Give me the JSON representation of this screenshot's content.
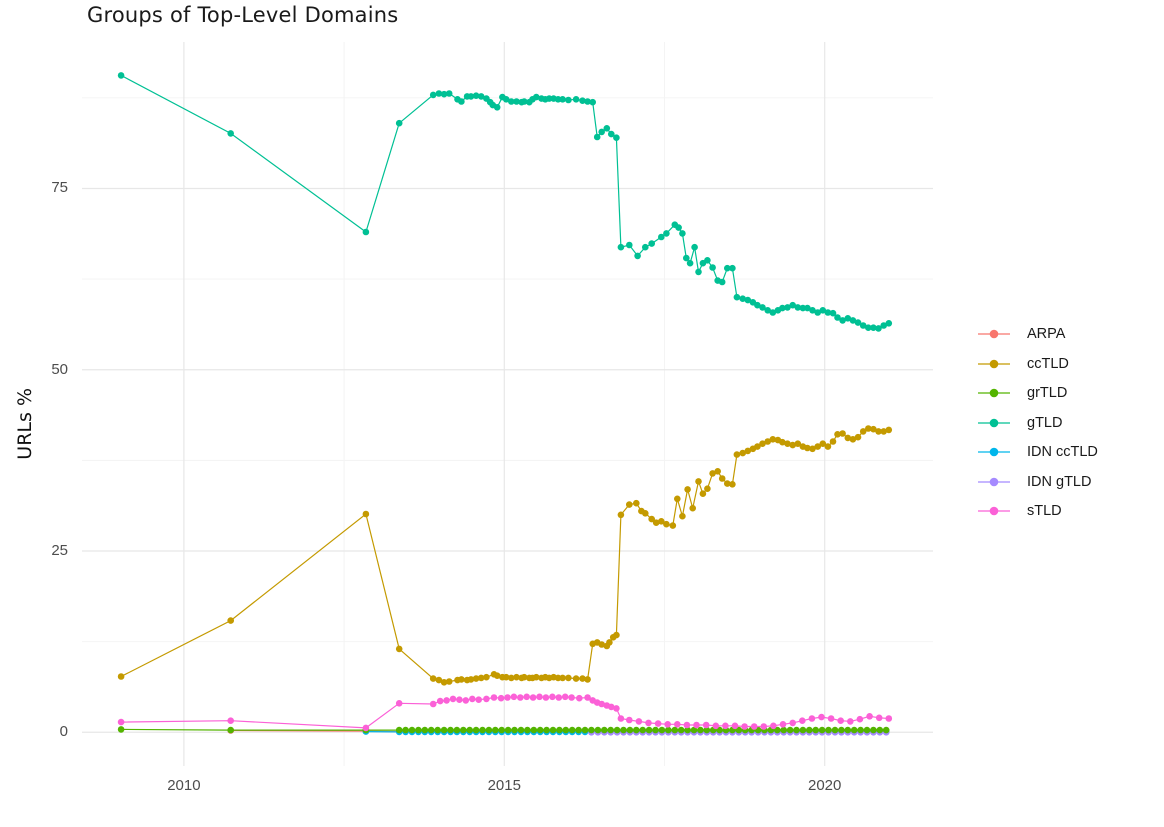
{
  "chart_data": {
    "type": "line",
    "title": "Groups of Top-Level Domains",
    "xlabel": "",
    "ylabel": "URLs %",
    "xlim": [
      2008.41,
      2021.69
    ],
    "ylim": [
      -4.65,
      95.2
    ],
    "x_ticks": [
      {
        "value": 2010,
        "label": "2010"
      },
      {
        "value": 2015,
        "label": "2015"
      },
      {
        "value": 2020,
        "label": "2020"
      }
    ],
    "x_minor": [
      2012.5,
      2017.5
    ],
    "y_ticks": [
      {
        "value": 0,
        "label": "0"
      },
      {
        "value": 25,
        "label": "25"
      },
      {
        "value": 50,
        "label": "50"
      },
      {
        "value": 75,
        "label": "75"
      }
    ],
    "y_minor": [
      12.5,
      37.5,
      62.5,
      87.5
    ],
    "grid": {
      "major_color": "#E7E7E7",
      "minor_color": "#F3F3F3",
      "background": "#FFFFFF"
    },
    "legend": {
      "position": "right",
      "items": [
        "ARPA",
        "ccTLD",
        "grTLD",
        "gTLD",
        "IDN ccTLD",
        "IDN gTLD",
        "sTLD"
      ]
    },
    "series": [
      {
        "name": "ARPA",
        "color": "#F8766D",
        "points": [
          [
            2010.73,
            0.25
          ],
          [
            2012.84,
            0.15
          ]
        ],
        "flat": {
          "from": 2013.36,
          "to": 2021.0,
          "step": 0.1,
          "value": 0.1
        }
      },
      {
        "name": "ccTLD",
        "color": "#C49A00",
        "points": [
          [
            2009.02,
            7.7
          ],
          [
            2010.73,
            15.4
          ],
          [
            2012.84,
            30.1
          ],
          [
            2013.36,
            11.5
          ],
          [
            2013.89,
            7.4
          ],
          [
            2013.98,
            7.2
          ],
          [
            2014.06,
            6.9
          ],
          [
            2014.14,
            7.0
          ],
          [
            2014.27,
            7.2
          ],
          [
            2014.33,
            7.3
          ],
          [
            2014.42,
            7.2
          ],
          [
            2014.48,
            7.3
          ],
          [
            2014.56,
            7.4
          ],
          [
            2014.64,
            7.5
          ],
          [
            2014.72,
            7.6
          ],
          [
            2014.84,
            8.0
          ],
          [
            2014.89,
            7.8
          ],
          [
            2014.97,
            7.6
          ],
          [
            2015.03,
            7.6
          ],
          [
            2015.11,
            7.5
          ],
          [
            2015.19,
            7.6
          ],
          [
            2015.27,
            7.5
          ],
          [
            2015.31,
            7.6
          ],
          [
            2015.39,
            7.5
          ],
          [
            2015.44,
            7.5
          ],
          [
            2015.5,
            7.6
          ],
          [
            2015.58,
            7.5
          ],
          [
            2015.64,
            7.6
          ],
          [
            2015.7,
            7.5
          ],
          [
            2015.77,
            7.6
          ],
          [
            2015.84,
            7.5
          ],
          [
            2015.91,
            7.5
          ],
          [
            2016.0,
            7.5
          ],
          [
            2016.12,
            7.4
          ],
          [
            2016.22,
            7.4
          ],
          [
            2016.3,
            7.3
          ],
          [
            2016.38,
            12.2
          ],
          [
            2016.45,
            12.4
          ],
          [
            2016.52,
            12.1
          ],
          [
            2016.6,
            11.9
          ],
          [
            2016.64,
            12.4
          ],
          [
            2016.7,
            13.1
          ],
          [
            2016.75,
            13.4
          ],
          [
            2016.82,
            30.0
          ],
          [
            2016.95,
            31.4
          ],
          [
            2017.06,
            31.6
          ],
          [
            2017.14,
            30.5
          ],
          [
            2017.2,
            30.2
          ],
          [
            2017.3,
            29.4
          ],
          [
            2017.37,
            28.9
          ],
          [
            2017.45,
            29.1
          ],
          [
            2017.53,
            28.7
          ],
          [
            2017.63,
            28.5
          ],
          [
            2017.7,
            32.2
          ],
          [
            2017.78,
            29.8
          ],
          [
            2017.86,
            33.5
          ],
          [
            2017.94,
            30.9
          ],
          [
            2018.03,
            34.6
          ],
          [
            2018.1,
            32.9
          ],
          [
            2018.17,
            33.6
          ],
          [
            2018.25,
            35.7
          ],
          [
            2018.33,
            36.0
          ],
          [
            2018.4,
            35.0
          ],
          [
            2018.48,
            34.3
          ],
          [
            2018.56,
            34.2
          ],
          [
            2018.63,
            38.3
          ],
          [
            2018.72,
            38.5
          ],
          [
            2018.8,
            38.8
          ],
          [
            2018.88,
            39.1
          ],
          [
            2018.95,
            39.4
          ],
          [
            2019.03,
            39.8
          ],
          [
            2019.11,
            40.1
          ],
          [
            2019.19,
            40.4
          ],
          [
            2019.27,
            40.3
          ],
          [
            2019.34,
            40.0
          ],
          [
            2019.42,
            39.8
          ],
          [
            2019.5,
            39.6
          ],
          [
            2019.58,
            39.8
          ],
          [
            2019.66,
            39.4
          ],
          [
            2019.73,
            39.2
          ],
          [
            2019.81,
            39.1
          ],
          [
            2019.89,
            39.4
          ],
          [
            2019.97,
            39.8
          ],
          [
            2020.05,
            39.4
          ],
          [
            2020.13,
            40.1
          ],
          [
            2020.2,
            41.1
          ],
          [
            2020.28,
            41.2
          ],
          [
            2020.36,
            40.6
          ],
          [
            2020.44,
            40.4
          ],
          [
            2020.52,
            40.7
          ],
          [
            2020.6,
            41.5
          ],
          [
            2020.68,
            41.9
          ],
          [
            2020.76,
            41.8
          ],
          [
            2020.84,
            41.5
          ],
          [
            2020.92,
            41.5
          ],
          [
            2021.0,
            41.7
          ]
        ]
      },
      {
        "name": "grTLD",
        "color": "#53B400",
        "points": [
          [
            2009.02,
            0.4
          ],
          [
            2010.73,
            0.3
          ],
          [
            2012.84,
            0.3
          ]
        ],
        "flat": {
          "from": 2013.36,
          "to": 2021.0,
          "step": 0.1,
          "value": 0.3
        }
      },
      {
        "name": "gTLD",
        "color": "#00C094",
        "points": [
          [
            2009.02,
            90.6
          ],
          [
            2010.73,
            82.6
          ],
          [
            2012.84,
            69.0
          ],
          [
            2013.36,
            84.0
          ],
          [
            2013.89,
            87.9
          ],
          [
            2013.98,
            88.1
          ],
          [
            2014.06,
            88.0
          ],
          [
            2014.14,
            88.1
          ],
          [
            2014.27,
            87.3
          ],
          [
            2014.33,
            87.0
          ],
          [
            2014.42,
            87.7
          ],
          [
            2014.48,
            87.7
          ],
          [
            2014.56,
            87.8
          ],
          [
            2014.64,
            87.7
          ],
          [
            2014.72,
            87.4
          ],
          [
            2014.78,
            86.9
          ],
          [
            2014.82,
            86.5
          ],
          [
            2014.89,
            86.2
          ],
          [
            2014.97,
            87.6
          ],
          [
            2015.03,
            87.3
          ],
          [
            2015.11,
            87.0
          ],
          [
            2015.19,
            87.0
          ],
          [
            2015.27,
            86.9
          ],
          [
            2015.31,
            87.0
          ],
          [
            2015.39,
            86.9
          ],
          [
            2015.44,
            87.3
          ],
          [
            2015.5,
            87.6
          ],
          [
            2015.58,
            87.4
          ],
          [
            2015.64,
            87.3
          ],
          [
            2015.7,
            87.4
          ],
          [
            2015.77,
            87.4
          ],
          [
            2015.84,
            87.3
          ],
          [
            2015.91,
            87.3
          ],
          [
            2016.0,
            87.2
          ],
          [
            2016.12,
            87.3
          ],
          [
            2016.22,
            87.1
          ],
          [
            2016.3,
            87.0
          ],
          [
            2016.38,
            86.9
          ],
          [
            2016.45,
            82.1
          ],
          [
            2016.52,
            82.8
          ],
          [
            2016.6,
            83.3
          ],
          [
            2016.67,
            82.5
          ],
          [
            2016.75,
            82.0
          ],
          [
            2016.82,
            66.9
          ],
          [
            2016.95,
            67.2
          ],
          [
            2017.08,
            65.7
          ],
          [
            2017.2,
            66.9
          ],
          [
            2017.3,
            67.4
          ],
          [
            2017.45,
            68.3
          ],
          [
            2017.53,
            68.8
          ],
          [
            2017.66,
            70.0
          ],
          [
            2017.72,
            69.6
          ],
          [
            2017.78,
            68.8
          ],
          [
            2017.84,
            65.4
          ],
          [
            2017.9,
            64.7
          ],
          [
            2017.97,
            66.9
          ],
          [
            2018.03,
            63.5
          ],
          [
            2018.1,
            64.7
          ],
          [
            2018.17,
            65.1
          ],
          [
            2018.25,
            64.1
          ],
          [
            2018.33,
            62.3
          ],
          [
            2018.4,
            62.1
          ],
          [
            2018.48,
            64.0
          ],
          [
            2018.56,
            64.0
          ],
          [
            2018.63,
            60.0
          ],
          [
            2018.72,
            59.8
          ],
          [
            2018.8,
            59.6
          ],
          [
            2018.88,
            59.3
          ],
          [
            2018.95,
            58.9
          ],
          [
            2019.03,
            58.6
          ],
          [
            2019.11,
            58.2
          ],
          [
            2019.19,
            57.9
          ],
          [
            2019.27,
            58.2
          ],
          [
            2019.34,
            58.5
          ],
          [
            2019.42,
            58.6
          ],
          [
            2019.5,
            58.9
          ],
          [
            2019.58,
            58.6
          ],
          [
            2019.66,
            58.5
          ],
          [
            2019.73,
            58.5
          ],
          [
            2019.81,
            58.2
          ],
          [
            2019.89,
            57.9
          ],
          [
            2019.97,
            58.2
          ],
          [
            2020.05,
            57.9
          ],
          [
            2020.13,
            57.8
          ],
          [
            2020.2,
            57.2
          ],
          [
            2020.28,
            56.8
          ],
          [
            2020.36,
            57.1
          ],
          [
            2020.44,
            56.8
          ],
          [
            2020.52,
            56.5
          ],
          [
            2020.6,
            56.1
          ],
          [
            2020.68,
            55.8
          ],
          [
            2020.76,
            55.8
          ],
          [
            2020.84,
            55.7
          ],
          [
            2020.92,
            56.1
          ],
          [
            2021.0,
            56.4
          ]
        ]
      },
      {
        "name": "IDN ccTLD",
        "color": "#00B6EB",
        "points": [
          [
            2012.84,
            0.1
          ]
        ],
        "flat": {
          "from": 2013.36,
          "to": 2021.0,
          "step": 0.1,
          "value": 0.05
        }
      },
      {
        "name": "IDN gTLD",
        "color": "#A58AFF",
        "points": [],
        "flat": {
          "from": 2016.36,
          "to": 2021.0,
          "step": 0.1,
          "value": 0.0
        }
      },
      {
        "name": "sTLD",
        "color": "#FB61D7",
        "points": [
          [
            2009.02,
            1.4
          ],
          [
            2010.73,
            1.6
          ],
          [
            2012.84,
            0.6
          ],
          [
            2013.36,
            4.0
          ],
          [
            2013.89,
            3.9
          ],
          [
            2014.0,
            4.3
          ],
          [
            2014.1,
            4.4
          ],
          [
            2014.2,
            4.6
          ],
          [
            2014.3,
            4.5
          ],
          [
            2014.4,
            4.4
          ],
          [
            2014.5,
            4.6
          ],
          [
            2014.6,
            4.5
          ],
          [
            2014.72,
            4.6
          ],
          [
            2014.84,
            4.8
          ],
          [
            2014.95,
            4.7
          ],
          [
            2015.05,
            4.8
          ],
          [
            2015.15,
            4.9
          ],
          [
            2015.25,
            4.8
          ],
          [
            2015.35,
            4.9
          ],
          [
            2015.45,
            4.8
          ],
          [
            2015.55,
            4.9
          ],
          [
            2015.65,
            4.8
          ],
          [
            2015.75,
            4.9
          ],
          [
            2015.85,
            4.8
          ],
          [
            2015.95,
            4.9
          ],
          [
            2016.05,
            4.8
          ],
          [
            2016.17,
            4.7
          ],
          [
            2016.3,
            4.8
          ],
          [
            2016.38,
            4.4
          ],
          [
            2016.45,
            4.1
          ],
          [
            2016.52,
            3.9
          ],
          [
            2016.6,
            3.7
          ],
          [
            2016.67,
            3.5
          ],
          [
            2016.75,
            3.3
          ],
          [
            2016.82,
            1.9
          ],
          [
            2016.95,
            1.7
          ],
          [
            2017.1,
            1.5
          ],
          [
            2017.25,
            1.3
          ],
          [
            2017.4,
            1.2
          ],
          [
            2017.55,
            1.1
          ],
          [
            2017.7,
            1.1
          ],
          [
            2017.85,
            1.0
          ],
          [
            2018.0,
            1.0
          ],
          [
            2018.15,
            1.0
          ],
          [
            2018.3,
            0.9
          ],
          [
            2018.45,
            0.9
          ],
          [
            2018.6,
            0.9
          ],
          [
            2018.75,
            0.8
          ],
          [
            2018.9,
            0.8
          ],
          [
            2019.05,
            0.8
          ],
          [
            2019.2,
            0.9
          ],
          [
            2019.35,
            1.1
          ],
          [
            2019.5,
            1.3
          ],
          [
            2019.65,
            1.6
          ],
          [
            2019.8,
            1.9
          ],
          [
            2019.95,
            2.1
          ],
          [
            2020.1,
            1.9
          ],
          [
            2020.25,
            1.6
          ],
          [
            2020.4,
            1.5
          ],
          [
            2020.55,
            1.8
          ],
          [
            2020.7,
            2.2
          ],
          [
            2020.85,
            2.0
          ],
          [
            2021.0,
            1.9
          ]
        ]
      }
    ]
  }
}
